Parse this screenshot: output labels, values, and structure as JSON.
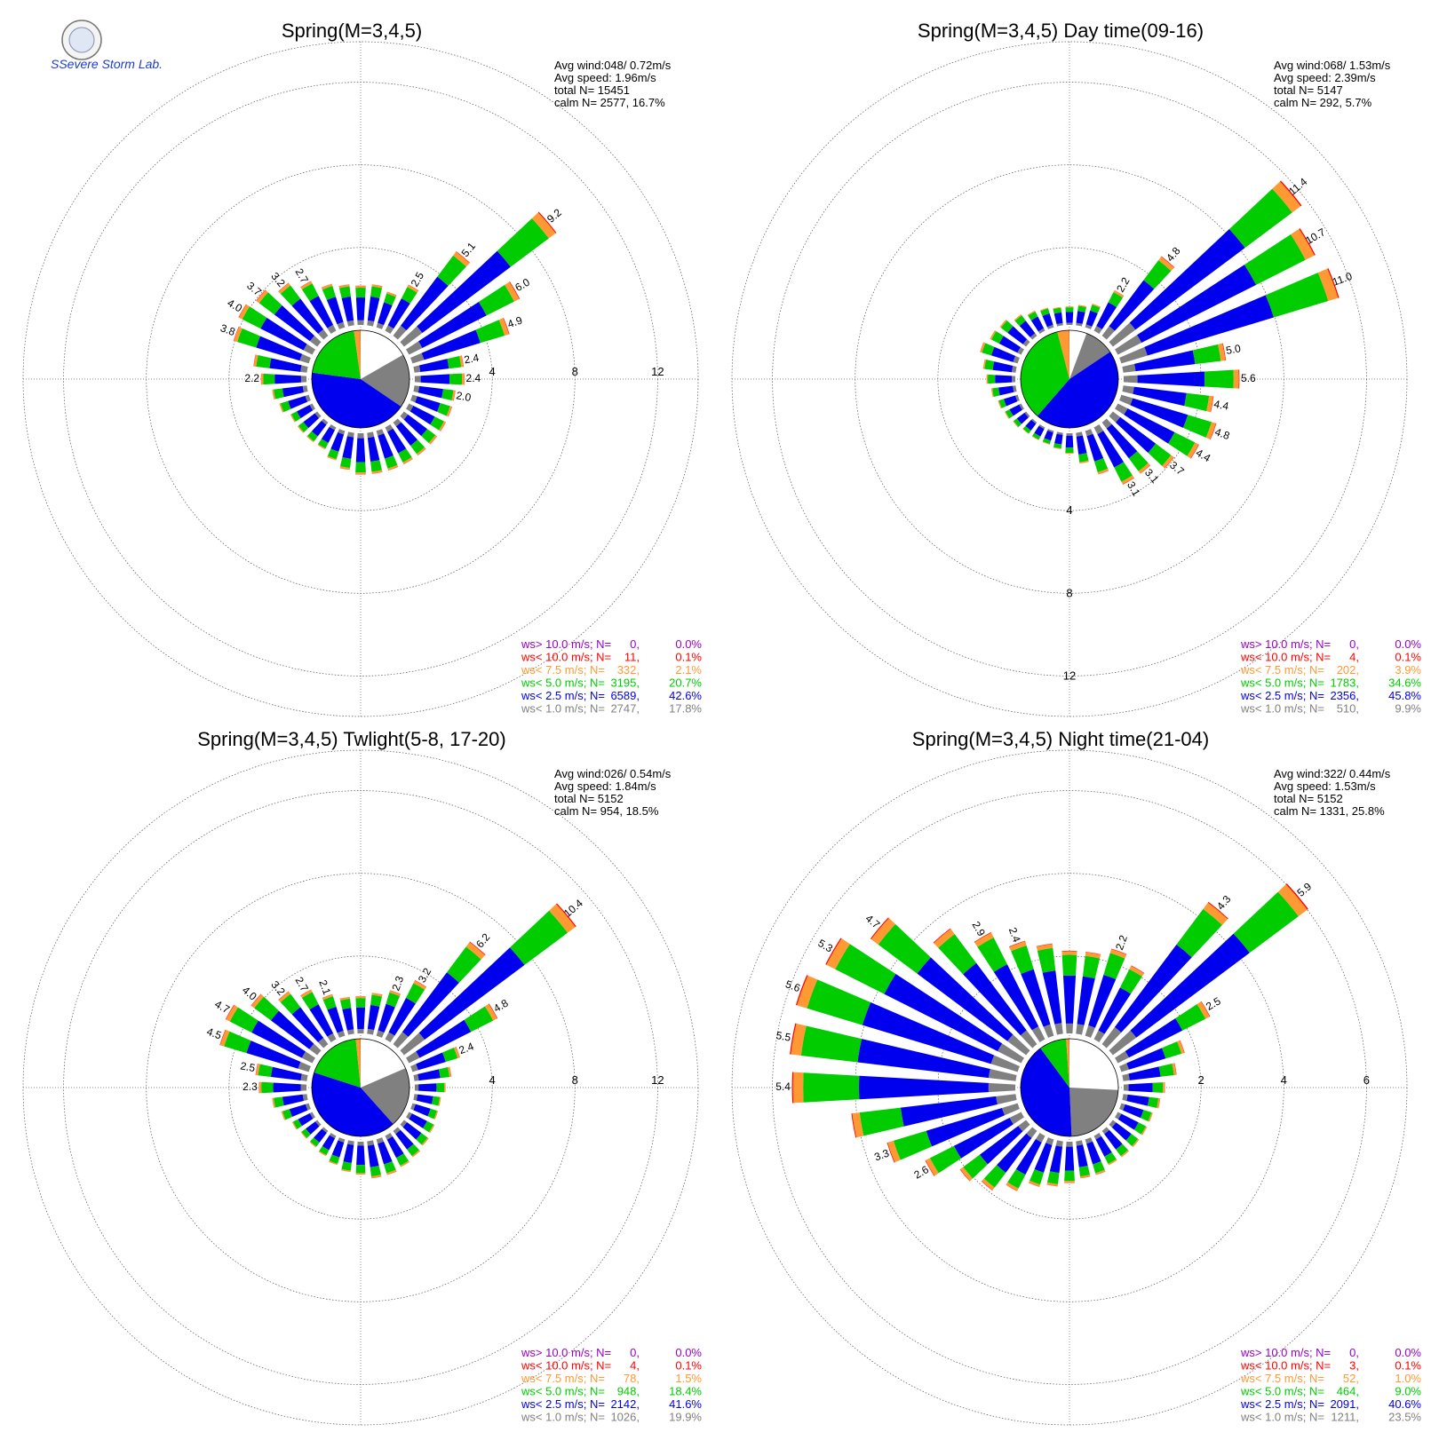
{
  "logo": {
    "text": "SSevere Storm Lab."
  },
  "colors": {
    "calm": "#ffffff",
    "lt1": "#808080",
    "lt2_5": "#0000ee",
    "lt5": "#00cc00",
    "lt7_5": "#ff9933",
    "lt10": "#ff0000",
    "gt10": "#9900cc"
  },
  "chart_data": [
    {
      "type": "wind-rose",
      "title": "Spring(M=3,4,5)",
      "stats": [
        "Avg wind:048/ 0.72m/s",
        "Avg speed: 1.96m/s",
        "total N=      15451",
        "calm N=   2577,  16.7%"
      ],
      "rings": [
        4,
        8,
        12
      ],
      "ring_labels_axis": "east",
      "sector_pct": [
        2.0,
        1.8,
        2.5,
        5.1,
        9.2,
        6.0,
        4.9,
        2.4,
        2.4,
        2.0,
        2.0,
        2.0,
        2.0,
        2.0,
        2.0,
        2.0,
        2.0,
        2.0,
        1.8,
        1.5,
        1.2,
        1.2,
        1.2,
        1.2,
        1.5,
        1.7,
        2.2,
        2.6,
        3.8,
        4.0,
        3.7,
        3.2,
        2.7,
        2.2,
        2.0,
        1.9
      ],
      "bar_labels": [
        "",
        "",
        "2.5",
        "5.1",
        "9.2",
        "6.0",
        "4.9",
        "2.4",
        "2.4",
        "2.0",
        "",
        "",
        "",
        "",
        "",
        "",
        "",
        "",
        "",
        "",
        "",
        "",
        "",
        "",
        "",
        "",
        "2.2",
        "",
        "3.8",
        "4.0",
        "3.7",
        "3.2",
        "2.7",
        "",
        "",
        ""
      ],
      "pie": [
        16.7,
        17.8,
        42.6,
        20.7,
        2.1,
        0.1,
        0.0
      ],
      "legend": [
        {
          "label": "ws> 10.0 m/s; N=",
          "n": "0",
          "pct": "0.0%",
          "color": "gt10"
        },
        {
          "label": "ws< 10.0 m/s; N=",
          "n": "11",
          "pct": "0.1%",
          "color": "lt10"
        },
        {
          "label": "ws<  7.5 m/s; N=",
          "n": "332",
          "pct": "2.1%",
          "color": "lt7_5"
        },
        {
          "label": "ws<  5.0 m/s; N=",
          "n": "3195",
          "pct": "20.7%",
          "color": "lt5"
        },
        {
          "label": "ws<  2.5 m/s; N=",
          "n": "6589",
          "pct": "42.6%",
          "color": "lt2_5"
        },
        {
          "label": "ws<  1.0 m/s; N=",
          "n": "2747",
          "pct": "17.8%",
          "color": "lt1"
        }
      ]
    },
    {
      "type": "wind-rose",
      "title": "Spring(M=3,4,5) Day time(09-16)",
      "stats": [
        "Avg wind:068/ 1.53m/s",
        "Avg speed: 2.39m/s",
        "total N=       5147",
        "calm N=    292,   5.7%"
      ],
      "rings": [
        4,
        8,
        12
      ],
      "ring_labels_axis": "south",
      "sector_pct": [
        1.0,
        1.2,
        2.2,
        4.8,
        11.4,
        10.7,
        11.0,
        5.0,
        5.6,
        4.4,
        4.8,
        4.4,
        3.7,
        3.1,
        3.1,
        2.2,
        1.5,
        1.0,
        0.8,
        0.7,
        0.7,
        0.7,
        0.8,
        0.9,
        1.0,
        1.2,
        1.4,
        1.6,
        1.9,
        1.7,
        1.6,
        1.3,
        1.1,
        1.0,
        0.9,
        0.9
      ],
      "bar_labels": [
        "",
        "",
        "2.2",
        "4.8",
        "11.4",
        "10.7",
        "11.0",
        "5.0",
        "5.6",
        "4.4",
        "4.8",
        "4.4",
        "3.7",
        "3.1",
        "3.1",
        "",
        "",
        "",
        "",
        "",
        "",
        "",
        "",
        "",
        "",
        "",
        "",
        "",
        "",
        "",
        "",
        "",
        "",
        "",
        "",
        ""
      ],
      "pie": [
        5.7,
        9.9,
        45.8,
        34.6,
        3.9,
        0.1,
        0.0
      ],
      "legend": [
        {
          "label": "ws> 10.0 m/s; N=",
          "n": "0",
          "pct": "0.0%",
          "color": "gt10"
        },
        {
          "label": "ws< 10.0 m/s; N=",
          "n": "4",
          "pct": "0.1%",
          "color": "lt10"
        },
        {
          "label": "ws<  7.5 m/s; N=",
          "n": "202",
          "pct": "3.9%",
          "color": "lt7_5"
        },
        {
          "label": "ws<  5.0 m/s; N=",
          "n": "1783",
          "pct": "34.6%",
          "color": "lt5"
        },
        {
          "label": "ws<  2.5 m/s; N=",
          "n": "2356",
          "pct": "45.8%",
          "color": "lt2_5"
        },
        {
          "label": "ws<  1.0 m/s; N=",
          "n": "510",
          "pct": "9.9%",
          "color": "lt1"
        }
      ]
    },
    {
      "type": "wind-rose",
      "title": "Spring(M=3,4,5) Twlight(5-8, 17-20)",
      "stats": [
        "Avg wind:026/ 0.54m/s",
        "Avg speed: 1.84m/s",
        "total N=       5152",
        "calm N=    954,  18.5%"
      ],
      "rings": [
        4,
        8,
        12
      ],
      "ring_labels_axis": "east",
      "sector_pct": [
        2.0,
        2.3,
        3.2,
        6.2,
        10.4,
        4.8,
        2.4,
        1.8,
        1.5,
        1.3,
        1.3,
        1.4,
        1.5,
        1.6,
        1.7,
        1.8,
        1.8,
        1.6,
        1.5,
        1.3,
        1.1,
        1.0,
        1.0,
        1.1,
        1.4,
        1.7,
        2.3,
        2.5,
        4.5,
        4.7,
        4.0,
        3.2,
        2.7,
        2.1,
        1.8,
        1.8
      ],
      "bar_labels": [
        "",
        "2.3",
        "3.2",
        "6.2",
        "10.4",
        "4.8",
        "2.4",
        "",
        "",
        "",
        "",
        "",
        "",
        "",
        "",
        "",
        "",
        "",
        "",
        "",
        "",
        "",
        "",
        "",
        "",
        "",
        "2.3",
        "2.5",
        "4.5",
        "4.7",
        "4.0",
        "3.2",
        "2.7",
        "2.1",
        "",
        ""
      ],
      "pie": [
        18.5,
        19.9,
        41.6,
        18.4,
        1.5,
        0.1,
        0.0
      ],
      "legend": [
        {
          "label": "ws> 10.0 m/s; N=",
          "n": "0",
          "pct": "0.0%",
          "color": "gt10"
        },
        {
          "label": "ws< 10.0 m/s; N=",
          "n": "4",
          "pct": "0.1%",
          "color": "lt10"
        },
        {
          "label": "ws<  7.5 m/s; N=",
          "n": "78",
          "pct": "1.5%",
          "color": "lt7_5"
        },
        {
          "label": "ws<  5.0 m/s; N=",
          "n": "948",
          "pct": "18.4%",
          "color": "lt5"
        },
        {
          "label": "ws<  2.5 m/s; N=",
          "n": "2142",
          "pct": "41.6%",
          "color": "lt2_5"
        },
        {
          "label": "ws<  1.0 m/s; N=",
          "n": "1026",
          "pct": "19.9%",
          "color": "lt1"
        }
      ]
    },
    {
      "type": "wind-rose",
      "title": "Spring(M=3,4,5) Night time(21-04)",
      "stats": [
        "Avg wind:322/ 0.44m/s",
        "Avg speed: 1.53m/s",
        "total N=       5152",
        "calm N=   1331,  25.8%"
      ],
      "rings": [
        2,
        4,
        6
      ],
      "ring_labels_axis": "east",
      "sector_pct": [
        2.0,
        2.2,
        2.0,
        4.3,
        5.9,
        2.5,
        1.6,
        1.3,
        1.0,
        0.9,
        0.8,
        0.8,
        0.8,
        0.8,
        0.8,
        0.9,
        0.9,
        1.0,
        1.1,
        1.2,
        1.5,
        1.8,
        2.0,
        2.6,
        3.3,
        4.0,
        5.4,
        5.5,
        5.6,
        5.3,
        4.7,
        3.5,
        2.9,
        2.4,
        2.2,
        2.0
      ],
      "bar_labels": [
        "",
        "2.2",
        "",
        "4.3",
        "5.9",
        "2.5",
        "",
        "",
        "",
        "",
        "",
        "",
        "",
        "",
        "",
        "",
        "",
        "",
        "",
        "",
        "",
        "",
        "",
        "2.6",
        "3.3",
        "",
        "5.4",
        "5.5",
        "5.6",
        "5.3",
        "4.7",
        "",
        "2.9",
        "2.4",
        "",
        ""
      ],
      "pie": [
        25.8,
        23.5,
        40.6,
        9.0,
        1.0,
        0.1,
        0.0
      ],
      "legend": [
        {
          "label": "ws> 10.0 m/s; N=",
          "n": "0",
          "pct": "0.0%",
          "color": "gt10"
        },
        {
          "label": "ws< 10.0 m/s; N=",
          "n": "3",
          "pct": "0.1%",
          "color": "lt10"
        },
        {
          "label": "ws<  7.5 m/s; N=",
          "n": "52",
          "pct": "1.0%",
          "color": "lt7_5"
        },
        {
          "label": "ws<  5.0 m/s; N=",
          "n": "464",
          "pct": "9.0%",
          "color": "lt5"
        },
        {
          "label": "ws<  2.5 m/s; N=",
          "n": "2091",
          "pct": "40.6%",
          "color": "lt2_5"
        },
        {
          "label": "ws<  1.0 m/s; N=",
          "n": "1211",
          "pct": "23.5%",
          "color": "lt1"
        }
      ]
    }
  ]
}
